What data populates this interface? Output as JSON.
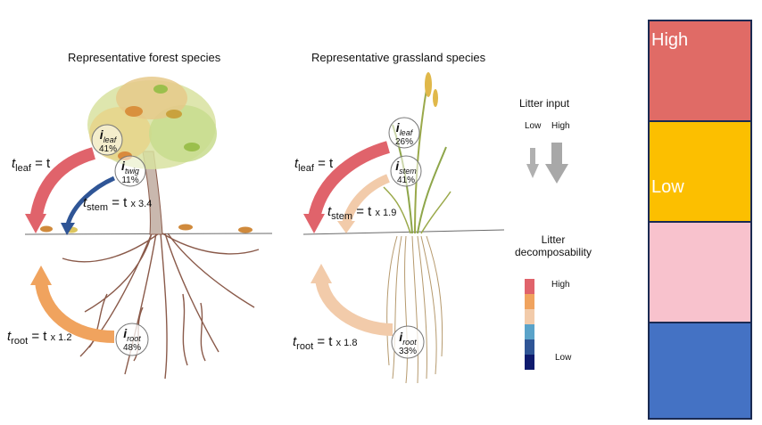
{
  "forest": {
    "title": "Representative forest species",
    "t_leaf": {
      "sym": "t",
      "sub": "leaf",
      "eq": "= t",
      "mult": ""
    },
    "t_stem": {
      "sym": "t",
      "sub": "stem",
      "eq": "= t",
      "mult": "x 3.4"
    },
    "t_root": {
      "sym": "t",
      "sub": "root",
      "eq": "= t",
      "mult": "x 1.2"
    },
    "i_leaf": {
      "sym": "i",
      "sub": "leaf",
      "pct": "41%"
    },
    "i_twig": {
      "sym": "i",
      "sub": "twig",
      "pct": "11%"
    },
    "i_root": {
      "sym": "i",
      "sub": "root",
      "pct": "48%"
    }
  },
  "grassland": {
    "title": "Representative grassland species",
    "t_leaf": {
      "sym": "t",
      "sub": "leaf",
      "eq": "= t",
      "mult": ""
    },
    "t_stem": {
      "sym": "t",
      "sub": "stem",
      "eq": "= t",
      "mult": "x 1.9"
    },
    "t_root": {
      "sym": "t",
      "sub": "root",
      "eq": "= t",
      "mult": "x 1.8"
    },
    "i_leaf": {
      "sym": "i",
      "sub": "leaf",
      "pct": "26%"
    },
    "i_stem": {
      "sym": "i",
      "sub": "stem",
      "pct": "41%"
    },
    "i_root": {
      "sym": "i",
      "sub": "root",
      "pct": "33%"
    }
  },
  "legend": {
    "litter_input": "Litter input",
    "low": "Low",
    "high": "High",
    "decomposability": [
      "Litter",
      "decomposability"
    ],
    "decomp_high": "High",
    "decomp_low": "Low",
    "scale_colors": [
      "#e0636b",
      "#f0a35e",
      "#f2cbaa",
      "#5aa3c9",
      "#2f5596",
      "#0f1b6e"
    ]
  },
  "color_blocks": [
    {
      "label": "High",
      "color": "#e06b66"
    },
    {
      "label": "Low",
      "color": "#fcbf00"
    },
    {
      "label": "",
      "color": "#f8c2cd"
    },
    {
      "label": "",
      "color": "#4472c4"
    }
  ]
}
